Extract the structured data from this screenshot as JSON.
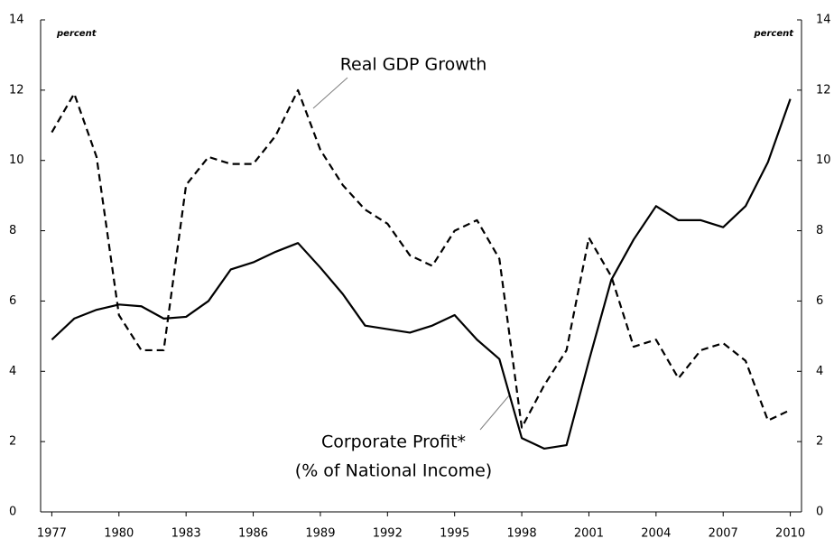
{
  "chart_data": {
    "type": "line",
    "ylabel": "percent",
    "y2label": "percent",
    "x": [
      1977,
      1978,
      1979,
      1980,
      1981,
      1982,
      1983,
      1984,
      1985,
      1986,
      1987,
      1988,
      1989,
      1990,
      1991,
      1992,
      1993,
      1994,
      1995,
      1996,
      1997,
      1998,
      1999,
      2000,
      2001,
      2002,
      2003,
      2004,
      2005,
      2006,
      2007,
      2008,
      2009,
      2010
    ],
    "xlim": [
      1976.5,
      2010.5
    ],
    "xticks": [
      1977,
      1980,
      1983,
      1986,
      1989,
      1992,
      1995,
      1998,
      2001,
      2004,
      2007,
      2010
    ],
    "ylim": [
      0,
      14
    ],
    "yticks": [
      0,
      2,
      4,
      6,
      8,
      10,
      12,
      14
    ],
    "y2lim": [
      0,
      14
    ],
    "y2ticks": [
      0,
      2,
      4,
      6,
      8,
      10,
      12,
      14
    ],
    "grid": false,
    "series": [
      {
        "name": "Real GDP Growth",
        "color": "#000000",
        "dash": true,
        "values": [
          10.8,
          11.9,
          10.1,
          5.6,
          4.6,
          4.6,
          9.3,
          10.1,
          9.9,
          9.9,
          10.7,
          12.0,
          10.3,
          9.3,
          8.6,
          8.2,
          7.3,
          7.0,
          8.0,
          8.3,
          7.2,
          2.4,
          3.6,
          4.6,
          7.8,
          6.7,
          4.7,
          4.9,
          3.8,
          4.6,
          4.8,
          4.3,
          2.6,
          2.9
        ]
      },
      {
        "name": "Corporate Profit*",
        "color": "#000000",
        "dash": false,
        "values": [
          4.9,
          5.5,
          5.75,
          5.9,
          5.85,
          5.5,
          5.55,
          6.0,
          6.9,
          7.1,
          7.4,
          7.65,
          6.95,
          6.2,
          5.3,
          5.2,
          5.1,
          5.3,
          5.6,
          4.9,
          4.35,
          2.1,
          1.8,
          1.9,
          4.3,
          6.6,
          7.75,
          8.7,
          8.3,
          8.3,
          8.1,
          8.7,
          9.95,
          11.75
        ]
      }
    ],
    "annotations": [
      "(% of National Income)"
    ]
  }
}
